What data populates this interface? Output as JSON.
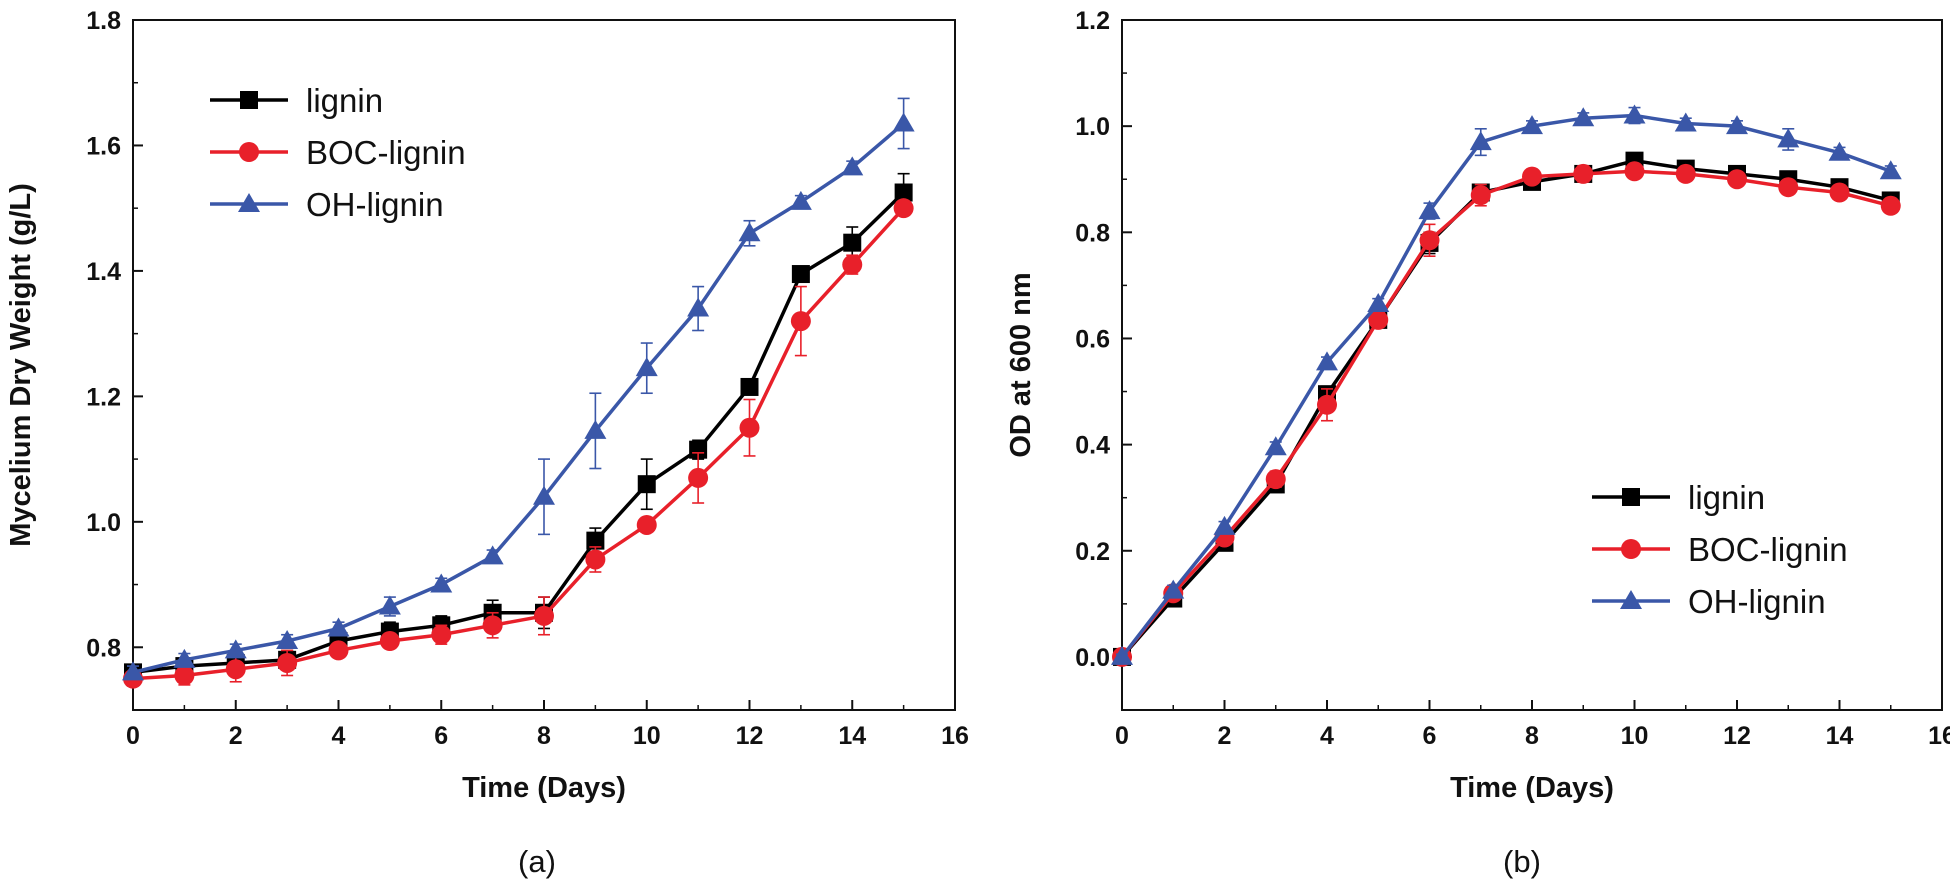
{
  "chart_data": [
    {
      "type": "line",
      "panel_label": "(a)",
      "xlabel": "Time (Days)",
      "ylabel": "Mycelium Dry Weight (g/L)",
      "xlim": [
        0,
        16
      ],
      "ylim": [
        0.7,
        1.8
      ],
      "x_ticks": [
        "0",
        "2",
        "4",
        "6",
        "8",
        "10",
        "12",
        "14",
        "16"
      ],
      "y_ticks": [
        "0.8",
        "1.0",
        "1.2",
        "1.4",
        "1.6",
        "1.8"
      ],
      "legend_position": "top-left",
      "x": [
        0,
        1,
        2,
        3,
        4,
        5,
        6,
        7,
        8,
        9,
        10,
        11,
        12,
        13,
        14,
        15
      ],
      "series": [
        {
          "name": "lignin",
          "color": "#000000",
          "marker": "square",
          "values": [
            0.76,
            0.77,
            0.775,
            0.78,
            0.81,
            0.825,
            0.835,
            0.855,
            0.855,
            0.97,
            1.06,
            1.115,
            1.215,
            1.395,
            1.445,
            1.525
          ],
          "errors": [
            0.01,
            0.01,
            0.01,
            0.015,
            0.01,
            0.015,
            0.015,
            0.02,
            0.025,
            0.02,
            0.04,
            0.015,
            0.01,
            0.01,
            0.025,
            0.03
          ]
        },
        {
          "name": "BOC-lignin",
          "color": "#e8202a",
          "marker": "circle",
          "values": [
            0.75,
            0.755,
            0.765,
            0.775,
            0.795,
            0.81,
            0.82,
            0.835,
            0.85,
            0.94,
            0.995,
            1.07,
            1.15,
            1.32,
            1.41,
            1.5
          ],
          "errors": [
            0.01,
            0.015,
            0.02,
            0.02,
            0.01,
            0.01,
            0.015,
            0.02,
            0.03,
            0.02,
            0.01,
            0.04,
            0.045,
            0.055,
            0.015,
            0.01
          ]
        },
        {
          "name": "OH-lignin",
          "color": "#3a57a8",
          "marker": "triangle",
          "values": [
            0.76,
            0.78,
            0.795,
            0.81,
            0.83,
            0.865,
            0.9,
            0.945,
            1.04,
            1.145,
            1.245,
            1.34,
            1.46,
            1.51,
            1.565,
            1.635
          ],
          "errors": [
            0.01,
            0.01,
            0.01,
            0.01,
            0.01,
            0.015,
            0.01,
            0.01,
            0.06,
            0.06,
            0.04,
            0.035,
            0.02,
            0.01,
            0.01,
            0.04
          ]
        }
      ]
    },
    {
      "type": "line",
      "panel_label": "(b)",
      "xlabel": "Time (Days)",
      "ylabel": "OD at 600 nm",
      "xlim": [
        0,
        16
      ],
      "ylim": [
        -0.1,
        1.2
      ],
      "x_ticks": [
        "0",
        "2",
        "4",
        "6",
        "8",
        "10",
        "12",
        "14",
        "16"
      ],
      "y_ticks": [
        "0.0",
        "0.2",
        "0.4",
        "0.6",
        "0.8",
        "1.0",
        "1.2"
      ],
      "legend_position": "bottom-right",
      "x": [
        0,
        1,
        2,
        3,
        4,
        5,
        6,
        7,
        8,
        9,
        10,
        11,
        12,
        13,
        14,
        15
      ],
      "series": [
        {
          "name": "lignin",
          "color": "#000000",
          "marker": "square",
          "values": [
            0.0,
            0.11,
            0.215,
            0.325,
            0.495,
            0.635,
            0.78,
            0.875,
            0.895,
            0.91,
            0.935,
            0.92,
            0.91,
            0.9,
            0.885,
            0.86
          ],
          "errors": [
            0.005,
            0.01,
            0.01,
            0.015,
            0.015,
            0.01,
            0.02,
            0.015,
            0.01,
            0.015,
            0.01,
            0.01,
            0.01,
            0.01,
            0.01,
            0.01
          ]
        },
        {
          "name": "BOC-lignin",
          "color": "#e8202a",
          "marker": "circle",
          "values": [
            0.0,
            0.12,
            0.225,
            0.335,
            0.475,
            0.635,
            0.785,
            0.87,
            0.905,
            0.91,
            0.915,
            0.91,
            0.9,
            0.885,
            0.875,
            0.85
          ],
          "errors": [
            0.005,
            0.01,
            0.01,
            0.015,
            0.03,
            0.01,
            0.03,
            0.02,
            0.01,
            0.015,
            0.01,
            0.01,
            0.01,
            0.01,
            0.01,
            0.01
          ]
        },
        {
          "name": "OH-lignin",
          "color": "#3a57a8",
          "marker": "triangle",
          "values": [
            0.0,
            0.125,
            0.245,
            0.395,
            0.555,
            0.665,
            0.84,
            0.97,
            1.0,
            1.015,
            1.02,
            1.005,
            1.0,
            0.975,
            0.95,
            0.915
          ],
          "errors": [
            0.005,
            0.01,
            0.01,
            0.01,
            0.01,
            0.01,
            0.015,
            0.025,
            0.01,
            0.01,
            0.015,
            0.01,
            0.01,
            0.02,
            0.01,
            0.01
          ]
        }
      ]
    }
  ]
}
